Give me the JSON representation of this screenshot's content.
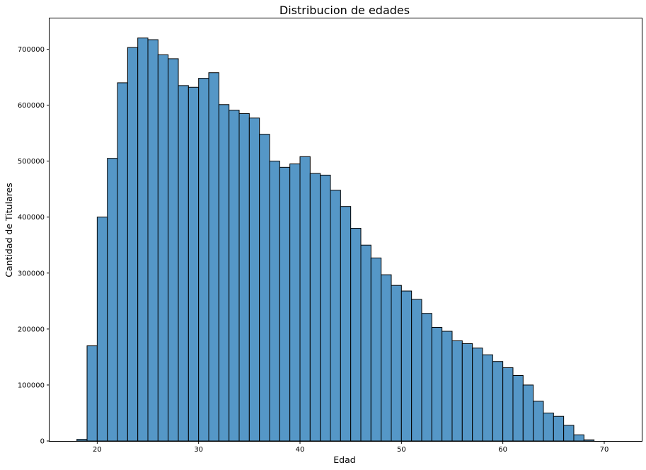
{
  "chart_data": {
    "type": "bar",
    "title": "Distribucion de edades",
    "xlabel": "Edad",
    "ylabel": "Cantidad de Titulares",
    "xlim": [
      15.3,
      73.7
    ],
    "ylim": [
      0,
      755000
    ],
    "xticks": [
      20,
      30,
      40,
      50,
      60,
      70
    ],
    "xtick_labels": [
      "20",
      "30",
      "40",
      "50",
      "60",
      "70"
    ],
    "yticks": [
      0,
      100000,
      200000,
      300000,
      400000,
      500000,
      600000,
      700000
    ],
    "ytick_labels": [
      "0",
      "100000",
      "200000",
      "300000",
      "400000",
      "500000",
      "600000",
      "700000"
    ],
    "bin_start": 18,
    "bin_width": 1,
    "values": [
      3000,
      170000,
      400000,
      505000,
      640000,
      703000,
      720000,
      717000,
      690000,
      683000,
      635000,
      632000,
      648000,
      658000,
      601000,
      591000,
      585000,
      577000,
      548000,
      500000,
      489000,
      495000,
      508000,
      478000,
      475000,
      448000,
      419000,
      380000,
      350000,
      327000,
      297000,
      278000,
      268000,
      253000,
      228000,
      203000,
      196000,
      179000,
      174000,
      166000,
      154000,
      142000,
      131000,
      117000,
      100000,
      71000,
      50000,
      44000,
      28000,
      11000,
      2000
    ],
    "bar_color": "#5597c7",
    "edge_color": "#000000",
    "grid": false
  }
}
